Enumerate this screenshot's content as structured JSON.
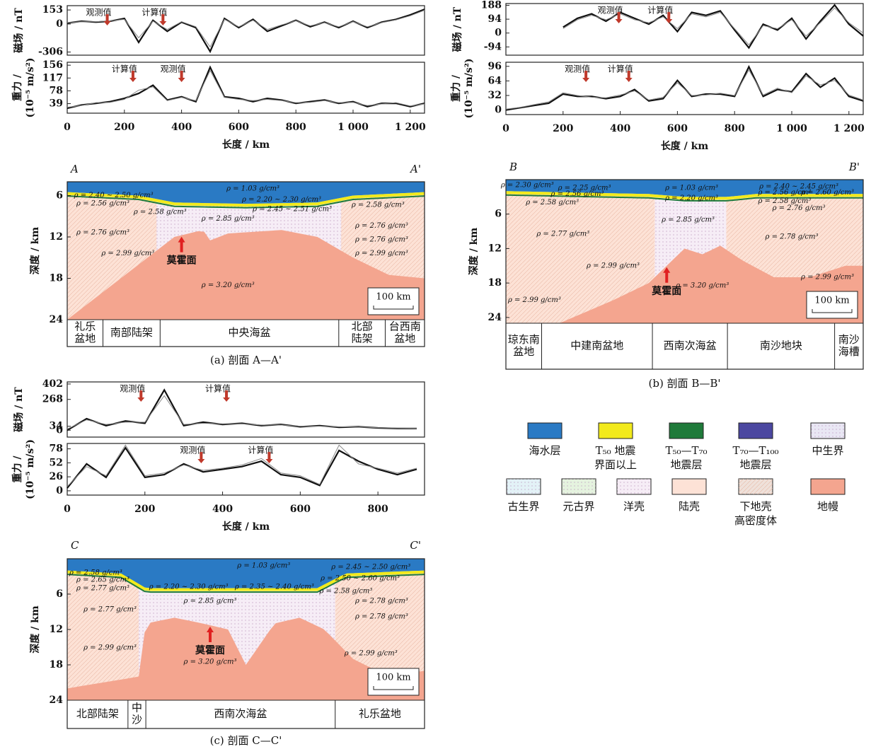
{
  "chart_data": [
    {
      "type": "line",
      "y_label": "磁场 / nT",
      "x": [
        0,
        50,
        100,
        150,
        200,
        250,
        300,
        350,
        400,
        450,
        500,
        550,
        600,
        650,
        700,
        750,
        800,
        850,
        900,
        950,
        1000,
        1050,
        1100,
        1150,
        1200,
        1250
      ],
      "series": [
        {
          "name": "观测值",
          "color": "#111111",
          "values": [
            10,
            30,
            20,
            30,
            60,
            -200,
            40,
            -80,
            20,
            -40,
            -300,
            60,
            -40,
            50,
            -80,
            -20,
            40,
            -30,
            20,
            -40,
            30,
            -40,
            20,
            50,
            100,
            160
          ]
        },
        {
          "name": "计算值",
          "color": "#888888",
          "values": [
            15,
            25,
            25,
            35,
            50,
            -150,
            30,
            -60,
            25,
            -30,
            -250,
            50,
            -30,
            40,
            -60,
            -10,
            35,
            -20,
            15,
            -30,
            25,
            -30,
            15,
            45,
            90,
            150
          ]
        }
      ],
      "xlim": [
        0,
        1250
      ],
      "ylim": [
        -340,
        200
      ],
      "yticks": [
        153,
        0,
        -306
      ]
    },
    {
      "type": "line",
      "y_label": [
        "重力 /",
        "(10⁻⁵ m/s²)"
      ],
      "x_label": "长度 / km",
      "x": [
        0,
        50,
        100,
        150,
        200,
        250,
        300,
        350,
        400,
        450,
        500,
        550,
        600,
        650,
        700,
        750,
        800,
        850,
        900,
        950,
        1000,
        1050,
        1100,
        1150,
        1200,
        1250
      ],
      "series": [
        {
          "name": "观测值",
          "color": "#111111",
          "values": [
            25,
            35,
            40,
            45,
            55,
            70,
            95,
            50,
            60,
            45,
            150,
            60,
            55,
            45,
            55,
            50,
            40,
            45,
            50,
            40,
            45,
            30,
            40,
            40,
            30,
            40
          ]
        },
        {
          "name": "计算值",
          "color": "#888888",
          "values": [
            28,
            33,
            42,
            43,
            52,
            80,
            90,
            48,
            58,
            48,
            140,
            58,
            52,
            48,
            52,
            48,
            42,
            43,
            48,
            42,
            43,
            33,
            38,
            42,
            32,
            38
          ]
        }
      ],
      "xlim": [
        0,
        1250
      ],
      "ylim": [
        10,
        165
      ],
      "yticks": [
        156,
        117,
        78,
        39
      ],
      "xticks": [
        0,
        200,
        400,
        600,
        800,
        {
          "value": 1000,
          "label": "1 000"
        },
        {
          "value": 1200,
          "label": "1 200"
        }
      ]
    },
    {
      "type": "line",
      "y_label": "磁场 / nT",
      "x": [
        200,
        250,
        300,
        350,
        400,
        450,
        500,
        550,
        600,
        650,
        700,
        750,
        800,
        850,
        900,
        950,
        1000,
        1050,
        1100,
        1150,
        1200,
        1250
      ],
      "series": [
        {
          "name": "观测值",
          "color": "#111111",
          "values": [
            40,
            100,
            130,
            80,
            140,
            100,
            60,
            120,
            10,
            140,
            120,
            150,
            20,
            -100,
            60,
            20,
            100,
            -40,
            80,
            190,
            60,
            -20
          ]
        },
        {
          "name": "计算值",
          "color": "#888888",
          "values": [
            30,
            90,
            120,
            90,
            130,
            90,
            70,
            110,
            30,
            130,
            110,
            140,
            30,
            -80,
            50,
            30,
            90,
            -20,
            70,
            170,
            70,
            0
          ]
        }
      ],
      "xlim": [
        0,
        1250
      ],
      "ylim": [
        -150,
        200
      ],
      "yticks": [
        188,
        94,
        0,
        -94
      ]
    },
    {
      "type": "line",
      "y_label": [
        "重力 /",
        "(10⁻⁵ m/s²)"
      ],
      "x_label": "长度 / km",
      "x": [
        0,
        50,
        100,
        150,
        200,
        250,
        300,
        350,
        400,
        450,
        500,
        550,
        600,
        650,
        700,
        750,
        800,
        850,
        900,
        950,
        1000,
        1050,
        1100,
        1150,
        1200,
        1250
      ],
      "series": [
        {
          "name": "观测值",
          "color": "#111111",
          "values": [
            0,
            5,
            10,
            15,
            35,
            30,
            30,
            25,
            30,
            45,
            20,
            25,
            65,
            30,
            35,
            35,
            30,
            95,
            30,
            45,
            40,
            80,
            50,
            70,
            30,
            20
          ]
        },
        {
          "name": "计算值",
          "color": "#888888",
          "values": [
            2,
            6,
            12,
            18,
            38,
            32,
            28,
            27,
            33,
            42,
            22,
            28,
            60,
            32,
            33,
            37,
            32,
            88,
            33,
            48,
            38,
            75,
            55,
            65,
            33,
            22
          ]
        }
      ],
      "xlim": [
        0,
        1250
      ],
      "ylim": [
        -10,
        105
      ],
      "yticks": [
        96,
        64,
        32,
        0
      ],
      "xticks": [
        0,
        200,
        400,
        600,
        800,
        {
          "value": 1000,
          "label": "1 000"
        },
        {
          "value": 1200,
          "label": "1 200"
        }
      ]
    },
    {
      "type": "line",
      "y_label": "磁场 / nT",
      "x": [
        0,
        50,
        100,
        150,
        200,
        250,
        300,
        350,
        400,
        450,
        500,
        550,
        600,
        650,
        700,
        750,
        800,
        850,
        900
      ],
      "series": [
        {
          "name": "观测值",
          "color": "#111111",
          "values": [
            0,
            100,
            40,
            80,
            60,
            350,
            40,
            70,
            50,
            60,
            40,
            50,
            30,
            40,
            25,
            30,
            20,
            15,
            15
          ]
        },
        {
          "name": "计算值",
          "color": "#888888",
          "values": [
            10,
            90,
            50,
            70,
            70,
            300,
            50,
            60,
            55,
            55,
            45,
            45,
            35,
            35,
            30,
            28,
            22,
            18,
            16
          ]
        }
      ],
      "xlim": [
        0,
        920
      ],
      "ylim": [
        -60,
        420
      ],
      "yticks": [
        402,
        268,
        34,
        0
      ]
    },
    {
      "type": "line",
      "y_label": [
        "重力 /",
        "(10⁻⁵ m/s²)"
      ],
      "x_label": "长度 / km",
      "x": [
        0,
        50,
        100,
        150,
        200,
        250,
        300,
        350,
        400,
        450,
        500,
        550,
        600,
        650,
        700,
        750,
        800,
        850,
        900
      ],
      "series": [
        {
          "name": "观测值",
          "color": "#111111",
          "values": [
            5,
            50,
            25,
            80,
            25,
            30,
            50,
            35,
            40,
            45,
            55,
            30,
            25,
            10,
            75,
            55,
            40,
            30,
            40
          ]
        },
        {
          "name": "计算值",
          "color": "#888888",
          "values": [
            8,
            45,
            28,
            85,
            28,
            33,
            48,
            38,
            42,
            48,
            60,
            33,
            28,
            12,
            85,
            50,
            42,
            33,
            42
          ]
        }
      ],
      "xlim": [
        0,
        920
      ],
      "ylim": [
        -8,
        88
      ],
      "yticks": [
        78,
        52,
        26,
        0
      ],
      "xticks": [
        0,
        200,
        400,
        600,
        800
      ]
    }
  ],
  "sections": [
    {
      "left": "A",
      "right": "A'",
      "caption": "(a) 剖面 A—A'",
      "y_label": "深度 / km",
      "ylim": [
        4,
        24
      ],
      "yticks": [
        6,
        12,
        18,
        24
      ],
      "moho": "莫霍面",
      "scale": "100 km",
      "densities": [
        "ρ = 1.03 g/cm³",
        "ρ = 2.40 ~ 2.50 g/cm³",
        "ρ = 2.56 g/cm³",
        "ρ = 2.58 g/cm³",
        "ρ = 2.20 ~ 2.30 g/cm³",
        "ρ = 2.45 ~ 2.51 g/cm³",
        "ρ = 2.58 g/cm³",
        "ρ = 2.76 g/cm³",
        "ρ = 2.85 g/cm³",
        "ρ = 2.76 g/cm³",
        "ρ = 2.76 g/cm³",
        "ρ = 2.99 g/cm³",
        "ρ = 2.99 g/cm³",
        "ρ = 3.20 g/cm³"
      ],
      "regions": [
        [
          "礼乐",
          "盆地"
        ],
        [
          "南部陆架"
        ],
        [
          "中央海盆"
        ],
        [
          "北部",
          "陆架"
        ],
        [
          "台西南",
          "盆地"
        ]
      ]
    },
    {
      "left": "B",
      "right": "B'",
      "caption": "(b) 剖面 B—B'",
      "y_label": "深度 / km",
      "ylim": [
        0,
        25
      ],
      "yticks": [
        6,
        12,
        18,
        24
      ],
      "moho": "莫霍面",
      "scale": "100 km",
      "densities": [
        "ρ = 2.30 g/cm³",
        "ρ = 2.25 g/cm³",
        "ρ = 2.56 g/cm³",
        "ρ = 2.58 g/cm³",
        "ρ = 1.03 g/cm³",
        "ρ = 2.20 g/cm³",
        "ρ = 2.40 ~ 2.45 g/cm³",
        "ρ = 2.56 g/cm³",
        "ρ = 2.60 g/cm³",
        "ρ = 2.58 g/cm³",
        "ρ = 2.76 g/cm³",
        "ρ = 2.85 g/cm³",
        "ρ = 2.77 g/cm³",
        "ρ = 2.78 g/cm³",
        "ρ = 2.99 g/cm³",
        "ρ = 2.99 g/cm³",
        "ρ = 2.99 g/cm³",
        "ρ = 3.20 g/cm³"
      ],
      "regions": [
        [
          "琼东南",
          "盆地"
        ],
        [
          "中建南盆地"
        ],
        [
          "西南次海盆"
        ],
        [
          "南沙地块"
        ],
        [
          "南沙",
          "海槽"
        ]
      ]
    },
    {
      "left": "C",
      "right": "C'",
      "caption": "(c) 剖面 C—C'",
      "y_label": "深度 / km",
      "ylim": [
        0,
        24
      ],
      "yticks": [
        6,
        12,
        18,
        24
      ],
      "moho": "莫霍面",
      "scale": "100 km",
      "densities": [
        "ρ = 1.03 g/cm³",
        "ρ = 2.58 g/cm³",
        "ρ = 2.65 g/cm³",
        "ρ = 2.77 g/cm³",
        "ρ = 2.20 ~ 2.30 g/cm³",
        "ρ = 2.35 ~ 2.40 g/cm³",
        "ρ = 2.45 ~ 2.50 g/cm³",
        "ρ = 2.50 ~ 2.60 g/cm³",
        "ρ = 2.58 g/cm³",
        "ρ = 2.78 g/cm³",
        "ρ = 2.77 g/cm³",
        "ρ = 2.85 g/cm³",
        "ρ = 2.78 g/cm³",
        "ρ = 2.99 g/cm³",
        "ρ = 2.99 g/cm³",
        "ρ = 3.20 g/cm³"
      ],
      "regions": [
        [
          "北部陆架"
        ],
        [
          "中",
          "沙"
        ],
        [
          "西南次海盆"
        ],
        [
          "礼乐盆地"
        ]
      ]
    }
  ],
  "legend": [
    {
      "name": [
        "海水层"
      ],
      "color": "#2a7ac4"
    },
    {
      "name": [
        "T₅₀ 地震",
        "界面以上"
      ],
      "color": "#f2ea1c"
    },
    {
      "name": [
        "T₅₀—T₇₀",
        "地震层"
      ],
      "color": "#1f7a3a"
    },
    {
      "name": [
        "T₇₀—T₁₀₀",
        "地震层"
      ],
      "color": "#4b47a0"
    },
    {
      "name": [
        "中生界"
      ],
      "color": "#e9e7f4"
    },
    {
      "name": [
        "古生界"
      ],
      "color": "#e3f2f7"
    },
    {
      "name": [
        "元古界"
      ],
      "color": "#e5f3df"
    },
    {
      "name": [
        "洋壳"
      ],
      "color": "#f6edf6"
    },
    {
      "name": [
        "陆壳"
      ],
      "color": "#fde2d6"
    },
    {
      "name": [
        "下地壳",
        "高密度体"
      ],
      "color": "#efe1da"
    },
    {
      "name": [
        "地幔"
      ],
      "color": "#f4a58f"
    }
  ]
}
